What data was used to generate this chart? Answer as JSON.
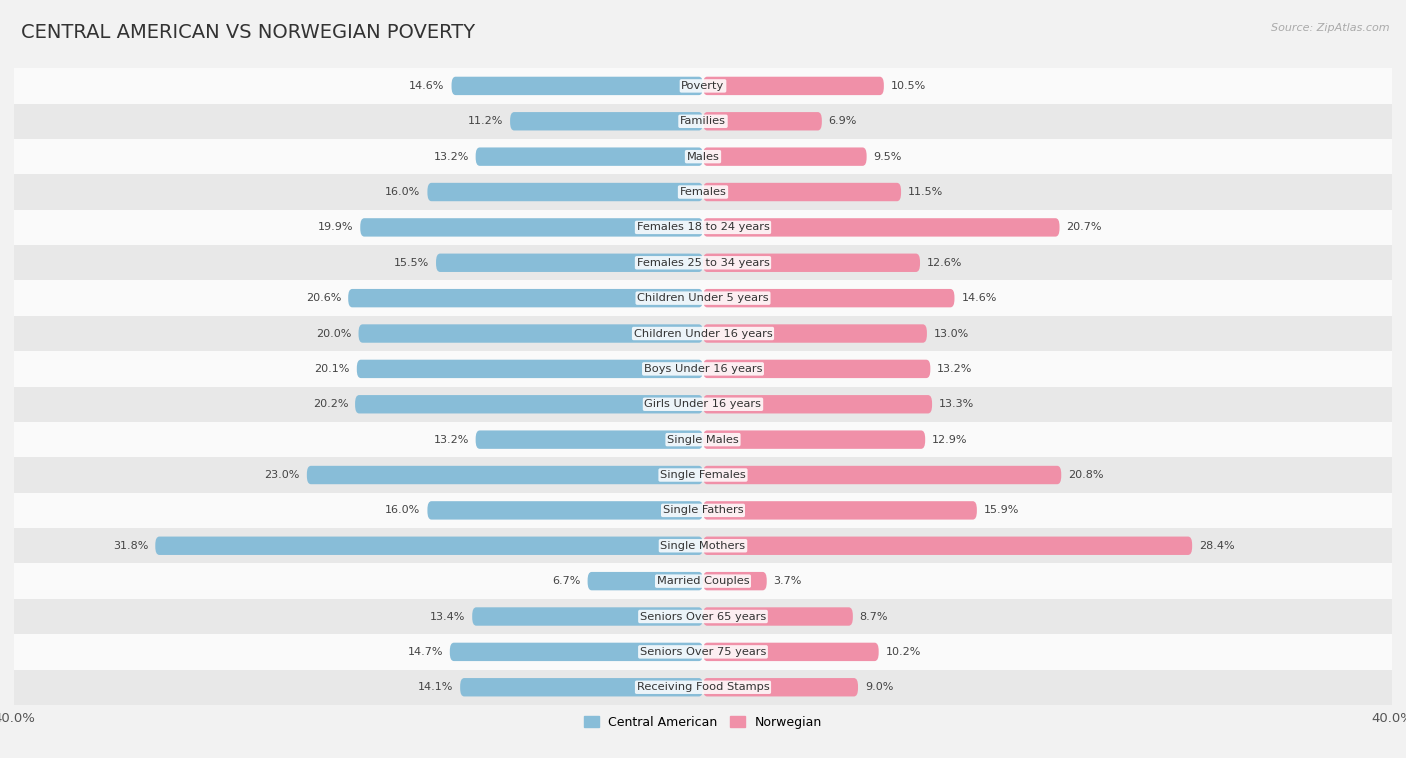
{
  "title": "CENTRAL AMERICAN VS NORWEGIAN POVERTY",
  "source": "Source: ZipAtlas.com",
  "categories": [
    "Poverty",
    "Families",
    "Males",
    "Females",
    "Females 18 to 24 years",
    "Females 25 to 34 years",
    "Children Under 5 years",
    "Children Under 16 years",
    "Boys Under 16 years",
    "Girls Under 16 years",
    "Single Males",
    "Single Females",
    "Single Fathers",
    "Single Mothers",
    "Married Couples",
    "Seniors Over 65 years",
    "Seniors Over 75 years",
    "Receiving Food Stamps"
  ],
  "central_american": [
    14.6,
    11.2,
    13.2,
    16.0,
    19.9,
    15.5,
    20.6,
    20.0,
    20.1,
    20.2,
    13.2,
    23.0,
    16.0,
    31.8,
    6.7,
    13.4,
    14.7,
    14.1
  ],
  "norwegian": [
    10.5,
    6.9,
    9.5,
    11.5,
    20.7,
    12.6,
    14.6,
    13.0,
    13.2,
    13.3,
    12.9,
    20.8,
    15.9,
    28.4,
    3.7,
    8.7,
    10.2,
    9.0
  ],
  "central_american_color": "#88bdd8",
  "norwegian_color": "#f090a8",
  "background_color": "#f2f2f2",
  "row_color_light": "#fafafa",
  "row_color_dark": "#e8e8e8",
  "xlim": 40.0,
  "bar_height": 0.52,
  "label_fontsize": 8.0,
  "category_fontsize": 8.2,
  "title_fontsize": 14,
  "source_fontsize": 8,
  "legend_fontsize": 9
}
